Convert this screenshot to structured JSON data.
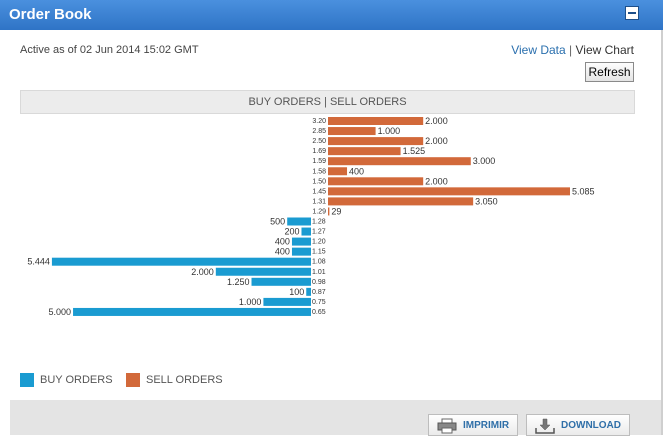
{
  "panel": {
    "title": "Order Book"
  },
  "status": {
    "active_text": "Active as of 02 Jun 2014 15:02 GMT"
  },
  "links": {
    "view_data": "View Data",
    "separator": "|",
    "view_chart": "View Chart"
  },
  "refresh_label": "Refresh",
  "chart_data": {
    "type": "bar",
    "orientation": "horizontal-diverging",
    "title": "BUY ORDERS | SELL ORDERS",
    "colors": {
      "buy": "#1a9bd1",
      "sell": "#d2693a"
    },
    "sell": [
      {
        "price": "3.20",
        "qty": 2000,
        "label": "2.000"
      },
      {
        "price": "2.85",
        "qty": 1000,
        "label": "1.000"
      },
      {
        "price": "2.50",
        "qty": 2000,
        "label": "2.000"
      },
      {
        "price": "1.69",
        "qty": 1525,
        "label": "1.525"
      },
      {
        "price": "1.59",
        "qty": 3000,
        "label": "3.000"
      },
      {
        "price": "1.58",
        "qty": 400,
        "label": "400"
      },
      {
        "price": "1.50",
        "qty": 2000,
        "label": "2.000"
      },
      {
        "price": "1.45",
        "qty": 5085,
        "label": "5.085"
      },
      {
        "price": "1.31",
        "qty": 3050,
        "label": "3.050"
      },
      {
        "price": "1.29",
        "qty": 29,
        "label": "29"
      }
    ],
    "buy": [
      {
        "price": "1.28",
        "qty": 500,
        "label": "500"
      },
      {
        "price": "1.27",
        "qty": 200,
        "label": "200"
      },
      {
        "price": "1.20",
        "qty": 400,
        "label": "400"
      },
      {
        "price": "1.15",
        "qty": 400,
        "label": "400"
      },
      {
        "price": "1.08",
        "qty": 5444,
        "label": "5.444"
      },
      {
        "price": "1.01",
        "qty": 2000,
        "label": "2.000"
      },
      {
        "price": "0.98",
        "qty": 1250,
        "label": "1.250"
      },
      {
        "price": "0.87",
        "qty": 100,
        "label": "100"
      },
      {
        "price": "0.75",
        "qty": 1000,
        "label": "1.000"
      },
      {
        "price": "0.65",
        "qty": 5000,
        "label": "5.000"
      }
    ],
    "legend": {
      "buy": "BUY ORDERS",
      "sell": "SELL ORDERS"
    }
  },
  "footer": {
    "print_label": "IMPRIMIR",
    "download_label": "DOWNLOAD"
  }
}
